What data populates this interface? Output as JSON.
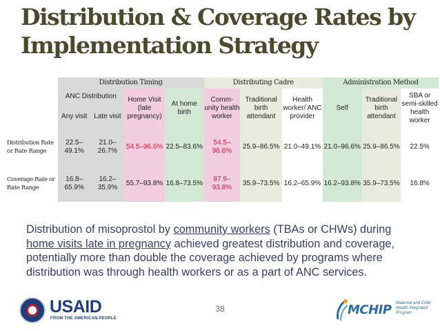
{
  "slide": {
    "title_line1": "Distribution & Coverage Rates by",
    "title_line2": "Implementation Strategy",
    "page_number": "38"
  },
  "table": {
    "groups": {
      "timing": "Distribution Timing",
      "cadre": "Distributing Cadre",
      "admin": "Administration Method"
    },
    "anc_group": "ANC Distribution",
    "columns": {
      "any_visit": "Any visit",
      "late_visit": "Late visit",
      "home_visit": "Home Visit (late pregnancy)",
      "at_home_birth": "At home birth",
      "chw": "Comm-unity health worker",
      "tba": "Traditional birth attendant",
      "hw": "Health worker/ ANC provider",
      "self": "Self",
      "admin_tba": "Traditional birth attendant",
      "sba": "SBA or semi-skilled health worker"
    },
    "rows": [
      {
        "label": "Distribution Rate or Rate Range",
        "values": [
          "22.5–49.1%",
          "21.0–26.7%",
          "54.5–96.6%",
          "22.5–83.6%",
          "54.5–96.6%",
          "25.9–86.5%",
          "21.0–49.1%",
          "21.0–96.6%",
          "25.9–86.5%",
          "22.5%"
        ]
      },
      {
        "label": "Coverage Rate or Rate Range",
        "values": [
          "16.8–65.9%",
          "16.2–35.9%",
          "55.7–93.8%",
          "16.8–73.5%",
          "87.9–93.8%",
          "35.9–73.5%",
          "16.2–65.9%",
          "16.2–93.8%",
          "35.9–73.5%",
          "16.8%"
        ]
      }
    ]
  },
  "description": {
    "part1": "Distribution of misoprostol by ",
    "link1": "community workers",
    "part2": " (TBAs or CHWs) during ",
    "link2": "home visits late in pregnancy",
    "part3": " achieved greatest distribution and coverage, potentially more than double the coverage achieved by programs where distribution was through health workers or as a part of ANC services."
  },
  "logos": {
    "usaid_word": "USAID",
    "usaid_tagline": "FROM THE AMERICAN PEOPLE",
    "mchip_word": "MCHIP",
    "mchip_sub": "Maternal and Child Health Integrated Program"
  },
  "colors": {
    "title": "#4a4a2e",
    "highlight_red": "#d11e3a",
    "body_text": "#3a3a68",
    "usaid_blue": "#1f3f7a"
  }
}
